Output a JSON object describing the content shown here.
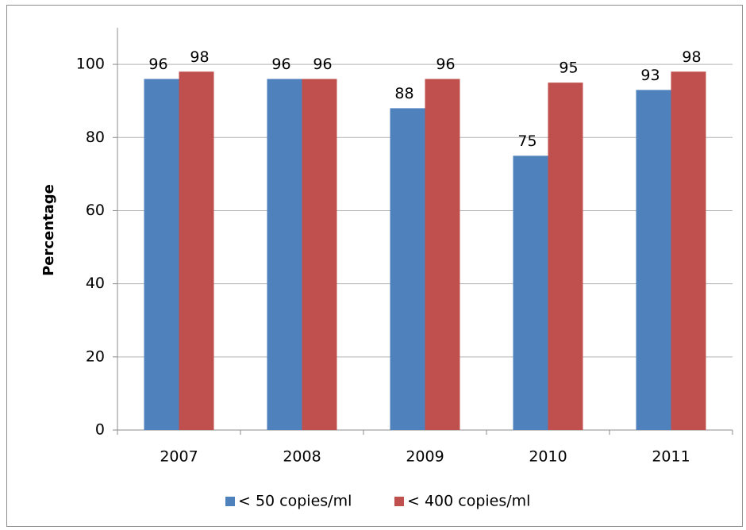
{
  "chart_data": {
    "type": "bar",
    "y_label": "Percentage",
    "categories": [
      "2007",
      "2008",
      "2009",
      "2010",
      "2011"
    ],
    "series": [
      {
        "name": "< 50 copies/ml",
        "color": "#4f81bd",
        "values": [
          96,
          96,
          88,
          75,
          93
        ]
      },
      {
        "name": "< 400 copies/ml",
        "color": "#c0504d",
        "values": [
          98,
          96,
          96,
          95,
          98
        ]
      }
    ],
    "ylim": [
      0,
      110
    ],
    "yticks": [
      0,
      20,
      40,
      60,
      80,
      100
    ],
    "grid": true,
    "legend": "bottom"
  }
}
